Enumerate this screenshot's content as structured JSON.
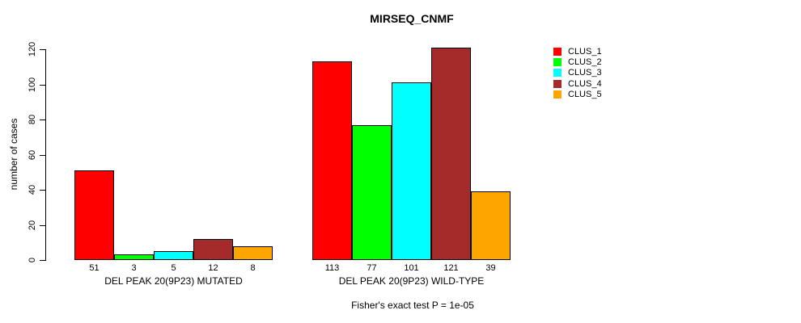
{
  "chart_data": {
    "type": "bar",
    "title": "MIRSEQ_CNMF",
    "ylabel": "number of cases",
    "xlabel": "",
    "ylim": [
      0,
      120
    ],
    "yticks": [
      0,
      20,
      40,
      60,
      80,
      100,
      120
    ],
    "grid": false,
    "legend_position": "right",
    "categories": [
      "DEL PEAK 20(9P23) MUTATED",
      "DEL PEAK 20(9P23) WILD-TYPE"
    ],
    "series": [
      {
        "name": "CLUS_1",
        "color": "#FF0000",
        "values": [
          51,
          113
        ]
      },
      {
        "name": "CLUS_2",
        "color": "#00FF00",
        "values": [
          3,
          77
        ]
      },
      {
        "name": "CLUS_3",
        "color": "#00FFFF",
        "values": [
          5,
          101
        ]
      },
      {
        "name": "CLUS_4",
        "color": "#A52A2A",
        "values": [
          12,
          121
        ]
      },
      {
        "name": "CLUS_5",
        "color": "#FFA500",
        "values": [
          8,
          39
        ]
      }
    ],
    "bar_value_labels": [
      [
        "51",
        "3",
        "5",
        "12",
        "8"
      ],
      [
        "113",
        "77",
        "101",
        "121",
        "39"
      ]
    ],
    "annotation": "Fisher's exact test P = 1e-05"
  }
}
